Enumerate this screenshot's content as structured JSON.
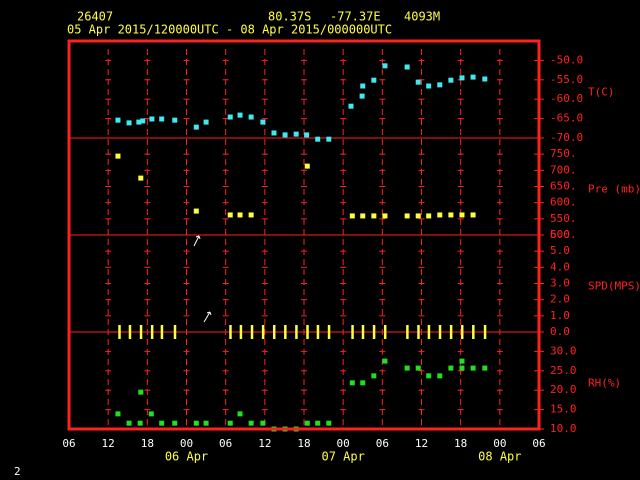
{
  "header": {
    "station": "26407",
    "latitude": "80.37S",
    "longitude": "-77.37E",
    "elevation": "4093M",
    "period": "05 Apr 2015/120000UTC - 08 Apr 2015/000000UTC"
  },
  "page_number": "2",
  "x_axis": {
    "xlim": [
      6,
      78
    ],
    "xticks": [
      {
        "value": 6,
        "label": "06"
      },
      12,
      18,
      {
        "value": 24,
        "label": "00"
      },
      {
        "value": 30,
        "label": "06"
      },
      {
        "value": 36,
        "label": "12"
      },
      {
        "value": 42,
        "label": "18"
      },
      {
        "value": 48,
        "label": "00"
      },
      {
        "value": 54,
        "label": "06"
      },
      {
        "value": 60,
        "label": "12"
      },
      {
        "value": 66,
        "label": "18"
      },
      {
        "value": 72,
        "label": "00"
      },
      {
        "value": 78,
        "label": "06"
      }
    ],
    "date_labels": [
      {
        "value": 24,
        "label": "06 Apr"
      },
      {
        "value": 48,
        "label": "07 Apr"
      },
      {
        "value": 72,
        "label": "08 Apr"
      }
    ]
  },
  "chart_data": [
    {
      "type": "scatter",
      "y_label": "T(C)",
      "marker": "square",
      "color": "#40e8f0",
      "ylim": [
        -70,
        -45
      ],
      "yticks": [
        {
          "value": -50,
          "label": "-50.0"
        },
        {
          "value": -55,
          "label": "-55.0"
        },
        {
          "value": -60,
          "label": "-60.0"
        },
        {
          "value": -65,
          "label": "-65.0"
        },
        {
          "value": -70,
          "label": "-70.0"
        }
      ],
      "x": [
        13.5,
        15.2,
        16.7,
        17.3,
        18.7,
        20.2,
        22.2,
        25.5,
        27.0,
        30.7,
        32.2,
        33.9,
        35.7,
        37.4,
        39.1,
        40.8,
        42.4,
        44.1,
        45.8,
        49.2,
        50.9,
        51.0,
        52.7,
        54.4,
        57.8,
        59.5,
        61.1,
        62.8,
        64.5,
        66.2,
        67.9,
        69.7
      ],
      "values": [
        -65.4,
        -66.1,
        -65.9,
        -65.6,
        -65.1,
        -65.1,
        -65.4,
        -67.2,
        -65.9,
        -64.6,
        -64.1,
        -64.6,
        -65.9,
        -68.7,
        -69.2,
        -69.0,
        -69.2,
        -70.3,
        -70.3,
        -61.8,
        -59.2,
        -56.6,
        -55.1,
        -51.4,
        -51.7,
        -55.6,
        -56.6,
        -56.3,
        -55.1,
        -54.5,
        -54.3,
        -54.8
      ]
    },
    {
      "type": "scatter",
      "y_label": "Pre (mb)",
      "marker": "square",
      "color": "#ffff40",
      "ylim": [
        500,
        800
      ],
      "yticks": [
        {
          "value": 750,
          "label": "750."
        },
        {
          "value": 700,
          "label": "700."
        },
        {
          "value": 650,
          "label": "650."
        },
        {
          "value": 600,
          "label": "600."
        },
        {
          "value": 550,
          "label": "550."
        },
        {
          "value": 500,
          "label": "500."
        }
      ],
      "x": [
        13.5,
        17.0,
        25.5,
        30.7,
        32.2,
        33.9,
        42.5,
        49.4,
        51.0,
        52.7,
        54.4,
        57.8,
        59.5,
        61.1,
        62.8,
        64.5,
        66.2,
        67.9
      ],
      "values": [
        744,
        676,
        574,
        562,
        562,
        562,
        713,
        559,
        559,
        559,
        559,
        559,
        559,
        559,
        562,
        562,
        562,
        562
      ]
    },
    {
      "type": "scatter",
      "y_label": "SPD(MPS)",
      "marker": "tick",
      "color": "#ffff40",
      "ylim": [
        0,
        6
      ],
      "yticks": [
        {
          "value": 6,
          "label": "6.0"
        },
        {
          "value": 5,
          "label": "5.0"
        },
        {
          "value": 4,
          "label": "4.0"
        },
        {
          "value": 3,
          "label": "3.0"
        },
        {
          "value": 2,
          "label": "2.0"
        },
        {
          "value": 1,
          "label": "1.0"
        },
        {
          "value": 0,
          "label": "0.0"
        }
      ],
      "x": [
        13.7,
        15.3,
        17.0,
        18.7,
        20.2,
        22.2,
        30.7,
        32.3,
        34.0,
        35.7,
        37.4,
        39.1,
        40.8,
        42.5,
        44.1,
        45.8,
        49.4,
        51.0,
        52.7,
        54.4,
        57.8,
        59.5,
        61.1,
        62.8,
        64.5,
        66.2,
        67.9,
        69.7
      ],
      "values": [
        0,
        0,
        0,
        0,
        0,
        0,
        0,
        0,
        0,
        0,
        0,
        0,
        0,
        0,
        0,
        0,
        0,
        0,
        0,
        0,
        0,
        0,
        0,
        0,
        0,
        0,
        0,
        0
      ]
    },
    {
      "type": "scatter",
      "y_label": "RH(%)",
      "marker": "square",
      "color": "#20e020",
      "ylim": [
        10,
        35
      ],
      "yticks": [
        {
          "value": 30,
          "label": "30.0"
        },
        {
          "value": 25,
          "label": "25.0"
        },
        {
          "value": 20,
          "label": "20.0"
        },
        {
          "value": 15,
          "label": "15.0"
        },
        {
          "value": 10,
          "label": "10.0"
        }
      ],
      "x": [
        13.5,
        15.2,
        16.9,
        17.0,
        18.6,
        20.2,
        22.2,
        25.5,
        27.0,
        30.7,
        32.2,
        33.9,
        35.7,
        37.4,
        39.1,
        40.8,
        42.5,
        44.1,
        45.8,
        49.4,
        51.0,
        52.7,
        54.4,
        57.8,
        59.5,
        61.1,
        62.8,
        64.5,
        66.2,
        66.2,
        67.9,
        69.7
      ],
      "values": [
        13.9,
        11.5,
        11.5,
        19.5,
        13.9,
        11.5,
        11.5,
        11.5,
        11.5,
        11.5,
        13.9,
        11.5,
        11.5,
        10,
        10,
        10,
        11.5,
        11.5,
        11.5,
        21.9,
        21.9,
        23.7,
        27.5,
        25.7,
        25.7,
        23.7,
        23.7,
        25.7,
        27.5,
        25.7,
        25.7,
        25.7
      ]
    }
  ]
}
